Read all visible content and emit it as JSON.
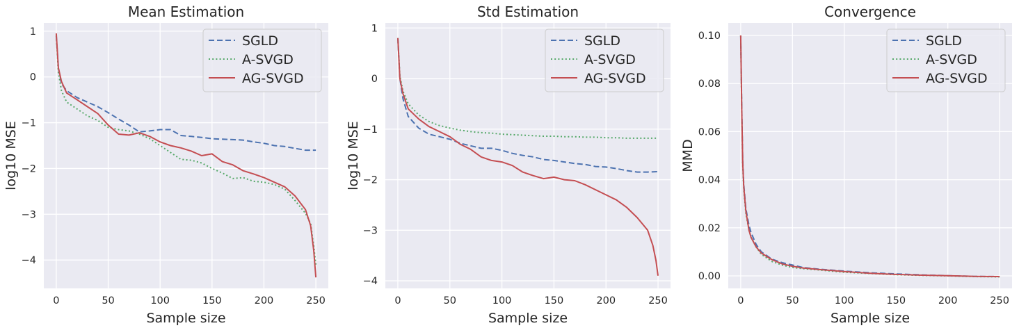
{
  "chart_data": [
    {
      "type": "line",
      "title": "Mean Estimation",
      "xlabel": "Sample size",
      "ylabel": "log10 MSE",
      "xlim": [
        -12,
        262
      ],
      "ylim": [
        -4.62,
        1.18
      ],
      "xticks": [
        0,
        50,
        100,
        150,
        200,
        250
      ],
      "xtick_labels": [
        "0",
        "50",
        "100",
        "150",
        "200",
        "250"
      ],
      "yticks": [
        1,
        0,
        -1,
        -2,
        -3,
        -4
      ],
      "ytick_labels": [
        "1",
        "0",
        "−1",
        "−2",
        "−3",
        "−4"
      ],
      "grid": true,
      "legend": "upper right",
      "series": [
        {
          "name": "SGLD",
          "color": "#4c72b0",
          "dash": "dashed",
          "x": [
            0,
            2,
            5,
            10,
            20,
            30,
            40,
            50,
            60,
            70,
            80,
            90,
            100,
            110,
            120,
            130,
            140,
            150,
            160,
            170,
            180,
            190,
            200,
            210,
            220,
            230,
            240,
            250
          ],
          "y": [
            0.9,
            0.2,
            -0.15,
            -0.3,
            -0.45,
            -0.55,
            -0.65,
            -0.78,
            -0.92,
            -1.05,
            -1.2,
            -1.18,
            -1.15,
            -1.15,
            -1.28,
            -1.3,
            -1.32,
            -1.35,
            -1.36,
            -1.37,
            -1.38,
            -1.42,
            -1.45,
            -1.5,
            -1.52,
            -1.56,
            -1.6,
            -1.6
          ]
        },
        {
          "name": "A-SVGD",
          "color": "#55a868",
          "dash": "dotted",
          "x": [
            0,
            2,
            5,
            10,
            20,
            30,
            40,
            50,
            60,
            70,
            80,
            90,
            100,
            110,
            120,
            130,
            140,
            150,
            160,
            170,
            180,
            190,
            200,
            210,
            220,
            230,
            240,
            245,
            248,
            250
          ],
          "y": [
            0.9,
            0.1,
            -0.3,
            -0.55,
            -0.7,
            -0.85,
            -0.95,
            -1.1,
            -1.15,
            -1.18,
            -1.25,
            -1.35,
            -1.5,
            -1.65,
            -1.8,
            -1.82,
            -1.88,
            -2.0,
            -2.1,
            -2.22,
            -2.2,
            -2.28,
            -2.3,
            -2.35,
            -2.45,
            -2.7,
            -2.98,
            -3.2,
            -3.7,
            -4.1
          ]
        },
        {
          "name": "AG-SVGD",
          "color": "#c44e52",
          "dash": "solid",
          "x": [
            0,
            2,
            5,
            10,
            20,
            30,
            40,
            50,
            60,
            70,
            80,
            90,
            100,
            110,
            120,
            130,
            140,
            150,
            160,
            170,
            180,
            190,
            200,
            210,
            220,
            230,
            240,
            245,
            248,
            250
          ],
          "y": [
            0.95,
            0.2,
            -0.1,
            -0.35,
            -0.5,
            -0.65,
            -0.8,
            -1.05,
            -1.25,
            -1.27,
            -1.22,
            -1.3,
            -1.42,
            -1.5,
            -1.55,
            -1.62,
            -1.72,
            -1.68,
            -1.85,
            -1.92,
            -2.05,
            -2.12,
            -2.2,
            -2.3,
            -2.4,
            -2.6,
            -2.9,
            -3.25,
            -3.8,
            -4.38
          ]
        }
      ]
    },
    {
      "type": "line",
      "title": "Std Estimation",
      "xlabel": "Sample size",
      "ylabel": "log10 MSE",
      "xlim": [
        -12,
        262
      ],
      "ylim": [
        -4.15,
        1.1
      ],
      "xticks": [
        0,
        50,
        100,
        150,
        200,
        250
      ],
      "xtick_labels": [
        "0",
        "50",
        "100",
        "150",
        "200",
        "250"
      ],
      "yticks": [
        1,
        0,
        -1,
        -2,
        -3,
        -4
      ],
      "ytick_labels": [
        "1",
        "0",
        "−1",
        "−2",
        "−3",
        "−4"
      ],
      "grid": true,
      "legend": "upper right",
      "series": [
        {
          "name": "SGLD",
          "color": "#4c72b0",
          "dash": "dashed",
          "x": [
            0,
            2,
            5,
            10,
            20,
            30,
            40,
            50,
            60,
            70,
            80,
            90,
            100,
            110,
            120,
            130,
            140,
            150,
            160,
            170,
            180,
            190,
            200,
            210,
            220,
            230,
            240,
            250
          ],
          "y": [
            0.8,
            0.0,
            -0.4,
            -0.75,
            -0.98,
            -1.1,
            -1.15,
            -1.2,
            -1.28,
            -1.33,
            -1.38,
            -1.38,
            -1.42,
            -1.48,
            -1.52,
            -1.55,
            -1.6,
            -1.62,
            -1.65,
            -1.68,
            -1.7,
            -1.74,
            -1.75,
            -1.78,
            -1.82,
            -1.85,
            -1.85,
            -1.84
          ]
        },
        {
          "name": "A-SVGD",
          "color": "#55a868",
          "dash": "dotted",
          "x": [
            0,
            2,
            5,
            10,
            20,
            30,
            40,
            50,
            60,
            70,
            80,
            90,
            100,
            110,
            120,
            130,
            140,
            150,
            160,
            170,
            180,
            190,
            200,
            210,
            220,
            230,
            240,
            250
          ],
          "y": [
            0.8,
            0.05,
            -0.25,
            -0.5,
            -0.72,
            -0.85,
            -0.93,
            -0.98,
            -1.02,
            -1.05,
            -1.07,
            -1.08,
            -1.1,
            -1.11,
            -1.12,
            -1.13,
            -1.14,
            -1.14,
            -1.15,
            -1.15,
            -1.16,
            -1.16,
            -1.17,
            -1.17,
            -1.18,
            -1.18,
            -1.18,
            -1.18
          ]
        },
        {
          "name": "AG-SVGD",
          "color": "#c44e52",
          "dash": "solid",
          "x": [
            0,
            2,
            5,
            10,
            20,
            30,
            40,
            50,
            60,
            70,
            80,
            90,
            100,
            110,
            120,
            130,
            140,
            150,
            160,
            170,
            180,
            190,
            200,
            210,
            220,
            230,
            240,
            245,
            248,
            250
          ],
          "y": [
            0.8,
            0.0,
            -0.3,
            -0.6,
            -0.8,
            -0.95,
            -1.05,
            -1.15,
            -1.3,
            -1.4,
            -1.55,
            -1.62,
            -1.65,
            -1.72,
            -1.85,
            -1.92,
            -1.98,
            -1.95,
            -2.0,
            -2.02,
            -2.1,
            -2.2,
            -2.3,
            -2.4,
            -2.55,
            -2.75,
            -3.0,
            -3.3,
            -3.6,
            -3.9
          ]
        }
      ]
    },
    {
      "type": "line",
      "title": "Convergence",
      "xlabel": "Sample size",
      "ylabel": "MMD",
      "xlim": [
        -12,
        262
      ],
      "ylim": [
        -0.0052,
        0.1052
      ],
      "xticks": [
        0,
        50,
        100,
        150,
        200,
        250
      ],
      "xtick_labels": [
        "0",
        "50",
        "100",
        "150",
        "200",
        "250"
      ],
      "yticks": [
        0.1,
        0.08,
        0.06,
        0.04,
        0.02,
        0.0
      ],
      "ytick_labels": [
        "0.10",
        "0.08",
        "0.06",
        "0.04",
        "0.02",
        "0.00"
      ],
      "grid": true,
      "legend": "upper right",
      "series": [
        {
          "name": "SGLD",
          "color": "#4c72b0",
          "dash": "dashed",
          "x": [
            0,
            1,
            2,
            3,
            5,
            8,
            10,
            15,
            20,
            30,
            40,
            50,
            60,
            75,
            100,
            125,
            150,
            175,
            200,
            225,
            250
          ],
          "y": [
            0.1,
            0.07,
            0.048,
            0.038,
            0.028,
            0.021,
            0.018,
            0.013,
            0.01,
            0.007,
            0.0055,
            0.0045,
            0.0035,
            0.0028,
            0.002,
            0.0013,
            0.0008,
            0.0004,
            0.0001,
            -0.0002,
            -0.0003
          ]
        },
        {
          "name": "A-SVGD",
          "color": "#55a868",
          "dash": "dotted",
          "x": [
            0,
            1,
            2,
            3,
            5,
            8,
            10,
            15,
            20,
            30,
            40,
            50,
            60,
            75,
            100,
            125,
            150,
            175,
            200,
            225,
            250
          ],
          "y": [
            0.1,
            0.068,
            0.046,
            0.036,
            0.026,
            0.019,
            0.016,
            0.012,
            0.009,
            0.006,
            0.0045,
            0.0035,
            0.003,
            0.0025,
            0.0015,
            0.001,
            0.0005,
            0.0002,
            0.0,
            -0.0003,
            -0.0004
          ]
        },
        {
          "name": "AG-SVGD",
          "color": "#c44e52",
          "dash": "solid",
          "x": [
            0,
            1,
            2,
            3,
            5,
            8,
            10,
            15,
            20,
            30,
            40,
            50,
            60,
            75,
            100,
            125,
            150,
            175,
            200,
            225,
            250
          ],
          "y": [
            0.1,
            0.069,
            0.047,
            0.037,
            0.027,
            0.019,
            0.016,
            0.012,
            0.0095,
            0.0068,
            0.005,
            0.004,
            0.0033,
            0.0027,
            0.0018,
            0.0011,
            0.0006,
            0.0003,
            0.0001,
            -0.0002,
            -0.0003
          ]
        }
      ]
    }
  ]
}
